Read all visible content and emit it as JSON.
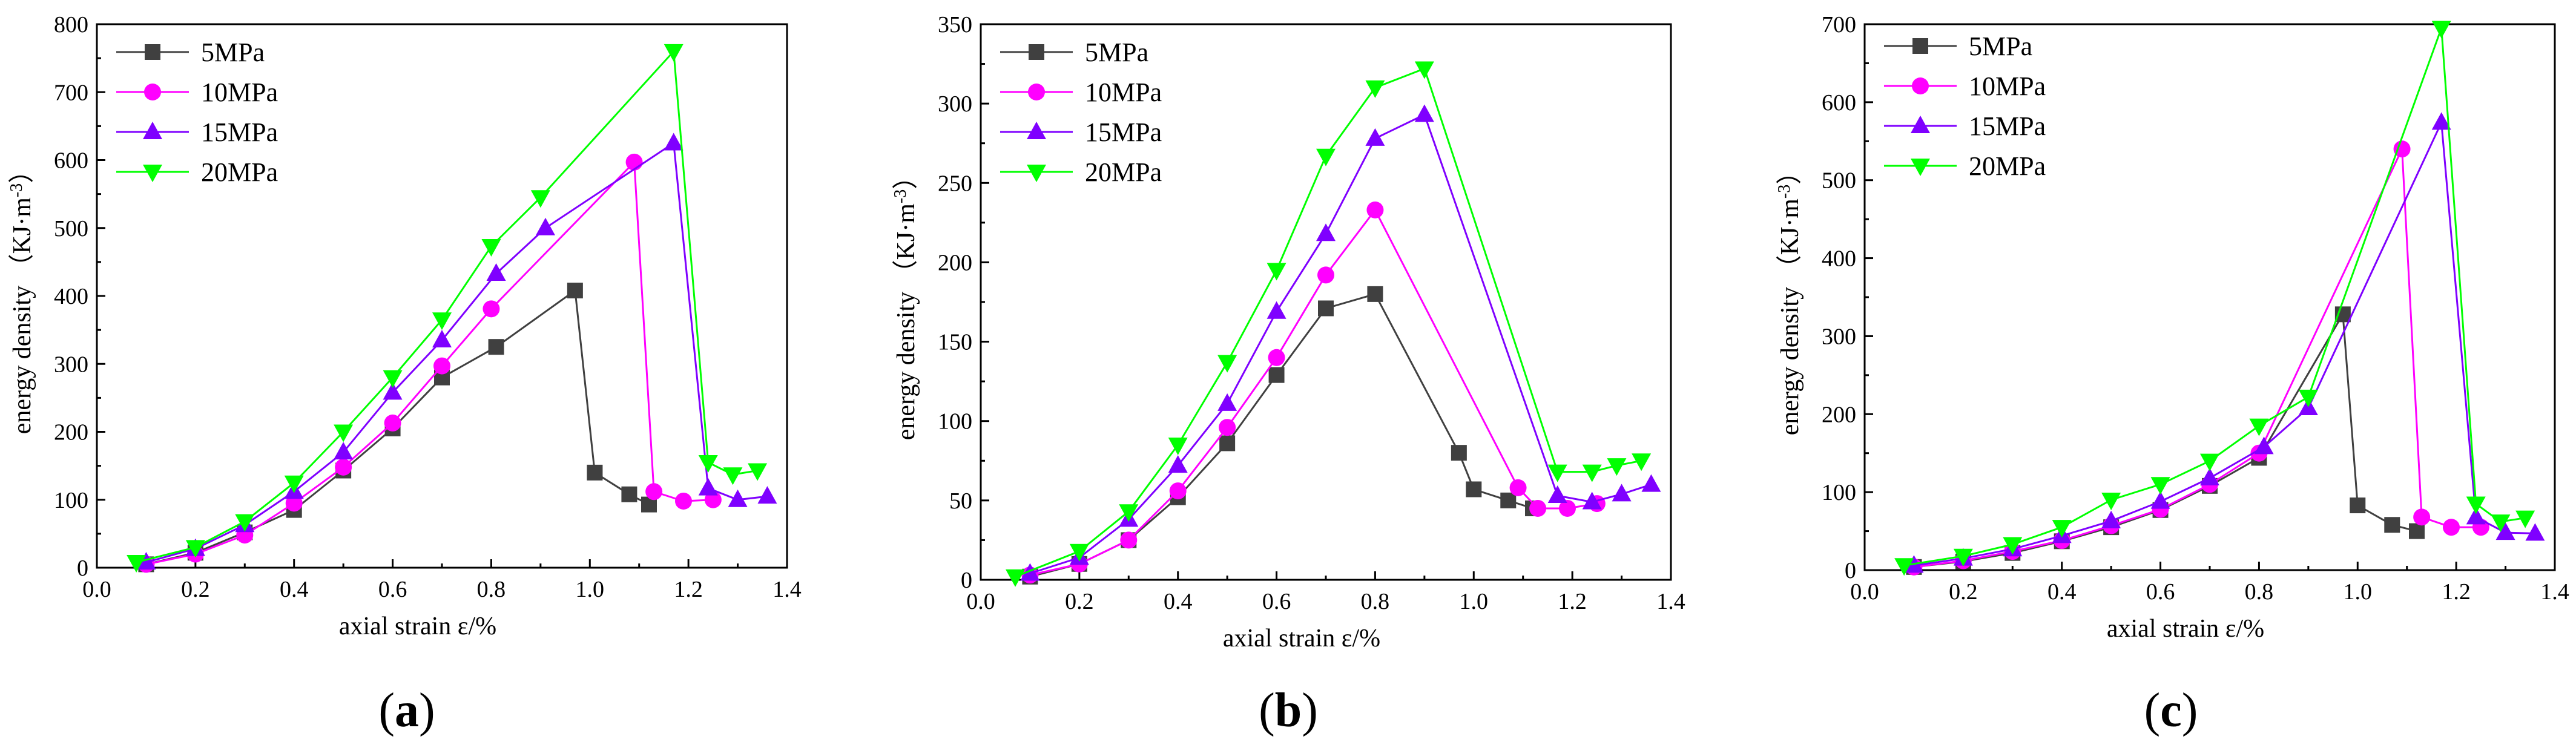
{
  "figure": {
    "panel_labels": [
      {
        "open": "(",
        "letter": "a",
        "close": ")"
      },
      {
        "open": "(",
        "letter": "b",
        "close": ")"
      },
      {
        "open": "(",
        "letter": "c",
        "close": ")"
      }
    ]
  },
  "chart_data": [
    {
      "type": "line",
      "panel": "a",
      "xlabel": "axial strain  ε/%",
      "ylabel": "energy density （KJ·m",
      "ylabel_sup": "-3",
      "ylabel_close": "）",
      "xlim": [
        0.0,
        1.4
      ],
      "ylim": [
        0,
        800
      ],
      "xticks": [
        "0.0",
        "0.2",
        "0.4",
        "0.6",
        "0.8",
        "1.0",
        "1.2",
        "1.4"
      ],
      "yticks": [
        "0",
        "100",
        "200",
        "300",
        "400",
        "500",
        "600",
        "700",
        "800"
      ],
      "legend": "top-left",
      "series": [
        {
          "name": "5MPa",
          "color": "#404040",
          "marker": "square",
          "x": [
            0.1,
            0.2,
            0.3,
            0.4,
            0.5,
            0.6,
            0.7,
            0.81,
            0.97,
            1.01,
            1.08,
            1.12
          ],
          "y": [
            5,
            22,
            52,
            85,
            143,
            205,
            280,
            325,
            408,
            140,
            108,
            93
          ]
        },
        {
          "name": "10MPa",
          "color": "#ff00ff",
          "marker": "circle",
          "x": [
            0.1,
            0.2,
            0.3,
            0.4,
            0.5,
            0.6,
            0.7,
            0.8,
            1.09,
            1.13,
            1.19,
            1.25
          ],
          "y": [
            5,
            20,
            48,
            95,
            148,
            213,
            297,
            381,
            597,
            112,
            98,
            100
          ]
        },
        {
          "name": "15MPa",
          "color": "#7f00ff",
          "marker": "triangle-up",
          "x": [
            0.1,
            0.2,
            0.3,
            0.4,
            0.5,
            0.6,
            0.7,
            0.81,
            0.91,
            1.17,
            1.24,
            1.3,
            1.36
          ],
          "y": [
            8,
            28,
            63,
            112,
            170,
            258,
            335,
            433,
            500,
            625,
            117,
            100,
            105
          ]
        },
        {
          "name": "20MPa",
          "color": "#00ff00",
          "marker": "triangle-down",
          "x": [
            0.08,
            0.2,
            0.3,
            0.4,
            0.5,
            0.6,
            0.7,
            0.8,
            0.9,
            1.17,
            1.24,
            1.29,
            1.34
          ],
          "y": [
            8,
            30,
            68,
            125,
            200,
            280,
            365,
            473,
            545,
            760,
            155,
            137,
            143
          ]
        }
      ]
    },
    {
      "type": "line",
      "panel": "b",
      "xlabel": "axial strain  ε/%",
      "ylabel": "energy density （KJ·m",
      "ylabel_sup": "-3",
      "ylabel_close": "）",
      "xlim": [
        0.0,
        1.4
      ],
      "ylim": [
        0,
        350
      ],
      "xticks": [
        "0.0",
        "0.2",
        "0.4",
        "0.6",
        "0.8",
        "1.0",
        "1.2",
        "1.4"
      ],
      "yticks": [
        "0",
        "50",
        "100",
        "150",
        "200",
        "250",
        "300",
        "350"
      ],
      "legend": "top-left",
      "series": [
        {
          "name": "5MPa",
          "color": "#404040",
          "marker": "square",
          "x": [
            0.1,
            0.2,
            0.3,
            0.4,
            0.5,
            0.6,
            0.7,
            0.8,
            0.97,
            1.0,
            1.07,
            1.12
          ],
          "y": [
            2,
            10,
            25,
            52,
            86,
            129,
            171,
            180,
            80,
            57,
            50,
            45
          ]
        },
        {
          "name": "10MPa",
          "color": "#ff00ff",
          "marker": "circle",
          "x": [
            0.1,
            0.2,
            0.3,
            0.4,
            0.5,
            0.6,
            0.7,
            0.8,
            1.09,
            1.13,
            1.19,
            1.25
          ],
          "y": [
            3,
            10,
            25,
            56,
            96,
            140,
            192,
            233,
            58,
            45,
            45,
            48
          ]
        },
        {
          "name": "15MPa",
          "color": "#7f00ff",
          "marker": "triangle-up",
          "x": [
            0.1,
            0.2,
            0.3,
            0.4,
            0.5,
            0.6,
            0.7,
            0.8,
            0.9,
            1.17,
            1.24,
            1.3,
            1.36
          ],
          "y": [
            4,
            14,
            38,
            72,
            111,
            169,
            218,
            278,
            293,
            53,
            49,
            54,
            60
          ]
        },
        {
          "name": "20MPa",
          "color": "#00ff00",
          "marker": "triangle-down",
          "x": [
            0.07,
            0.2,
            0.3,
            0.4,
            0.5,
            0.6,
            0.7,
            0.8,
            0.9,
            1.17,
            1.24,
            1.29,
            1.34
          ],
          "y": [
            2,
            18,
            43,
            85,
            137,
            195,
            267,
            310,
            322,
            68,
            68,
            72,
            75
          ]
        }
      ]
    },
    {
      "type": "line",
      "panel": "c",
      "xlabel": "axial strain  ε/%",
      "ylabel": "energy density （KJ·m",
      "ylabel_sup": "-3",
      "ylabel_close": "）",
      "xlim": [
        0.0,
        1.4
      ],
      "ylim": [
        0,
        700
      ],
      "xticks": [
        "0.0",
        "0.2",
        "0.4",
        "0.6",
        "0.8",
        "1.0",
        "1.2",
        "1.4"
      ],
      "yticks": [
        "0",
        "100",
        "200",
        "300",
        "400",
        "500",
        "600",
        "700"
      ],
      "legend": "top-left",
      "series": [
        {
          "name": "5MPa",
          "color": "#404040",
          "marker": "square",
          "x": [
            0.1,
            0.2,
            0.3,
            0.4,
            0.5,
            0.6,
            0.7,
            0.8,
            0.97,
            1.0,
            1.07,
            1.12
          ],
          "y": [
            4,
            11,
            22,
            37,
            55,
            77,
            108,
            144,
            328,
            83,
            58,
            50
          ]
        },
        {
          "name": "10MPa",
          "color": "#ff00ff",
          "marker": "circle",
          "x": [
            0.1,
            0.2,
            0.3,
            0.4,
            0.5,
            0.6,
            0.7,
            0.8,
            1.09,
            1.13,
            1.19,
            1.25
          ],
          "y": [
            4,
            12,
            24,
            38,
            57,
            78,
            110,
            150,
            540,
            68,
            55,
            55
          ]
        },
        {
          "name": "15MPa",
          "color": "#7f00ff",
          "marker": "triangle-up",
          "x": [
            0.1,
            0.2,
            0.3,
            0.4,
            0.5,
            0.6,
            0.7,
            0.81,
            0.9,
            1.17,
            1.24,
            1.3,
            1.36
          ],
          "y": [
            6,
            15,
            27,
            44,
            63,
            88,
            118,
            158,
            208,
            574,
            68,
            48,
            47
          ]
        },
        {
          "name": "20MPa",
          "color": "#00ff00",
          "marker": "triangle-down",
          "x": [
            0.08,
            0.2,
            0.3,
            0.4,
            0.5,
            0.6,
            0.7,
            0.8,
            0.9,
            1.17,
            1.24,
            1.29,
            1.34
          ],
          "y": [
            6,
            18,
            33,
            55,
            90,
            110,
            140,
            185,
            222,
            695,
            85,
            62,
            67
          ]
        }
      ]
    }
  ]
}
